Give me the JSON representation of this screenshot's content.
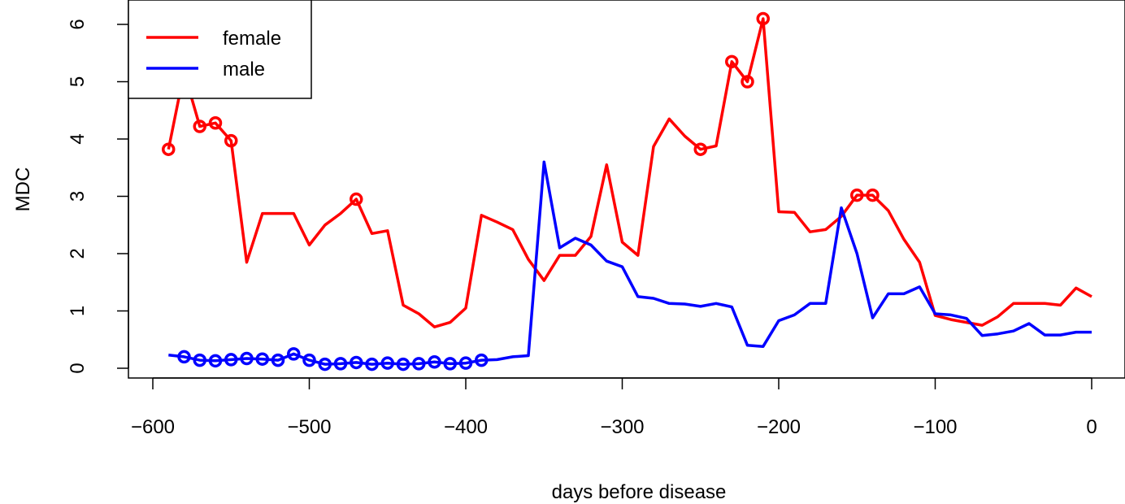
{
  "chart_data": {
    "type": "line",
    "title": "",
    "xlabel": "days before disease",
    "ylabel": "MDC",
    "xlim": [
      -600,
      0
    ],
    "ylim": [
      0,
      6
    ],
    "xticks": [
      -600,
      -500,
      -400,
      -300,
      -200,
      -100,
      0
    ],
    "yticks": [
      0,
      1,
      2,
      3,
      4,
      5,
      6
    ],
    "xtick_labels": [
      "−600",
      "−500",
      "−400",
      "−300",
      "−200",
      "−100",
      "0"
    ],
    "ytick_labels": [
      "0",
      "1",
      "2",
      "3",
      "4",
      "5",
      "6"
    ],
    "grid": false,
    "legend_position": "top-left",
    "series": [
      {
        "name": "female",
        "color": "#ff0000",
        "x": [
          -590,
          -580,
          -570,
          -560,
          -550,
          -540,
          -530,
          -520,
          -510,
          -500,
          -490,
          -480,
          -470,
          -460,
          -450,
          -440,
          -430,
          -420,
          -410,
          -400,
          -390,
          -380,
          -370,
          -360,
          -350,
          -340,
          -330,
          -320,
          -310,
          -300,
          -290,
          -280,
          -270,
          -260,
          -250,
          -240,
          -230,
          -220,
          -210,
          -200,
          -190,
          -180,
          -170,
          -160,
          -150,
          -140,
          -130,
          -120,
          -110,
          -100,
          -90,
          -80,
          -70,
          -60,
          -50,
          -40,
          -30,
          -20,
          -10,
          0
        ],
        "y": [
          3.82,
          5.17,
          4.22,
          4.28,
          3.97,
          1.85,
          2.7,
          2.7,
          2.7,
          2.15,
          2.5,
          2.7,
          2.95,
          2.35,
          2.4,
          1.1,
          0.95,
          0.72,
          0.8,
          1.05,
          2.67,
          2.55,
          2.42,
          1.9,
          1.53,
          1.97,
          1.97,
          2.3,
          3.55,
          2.2,
          1.97,
          3.87,
          4.35,
          4.05,
          3.82,
          3.88,
          5.35,
          5.0,
          6.1,
          2.73,
          2.72,
          2.38,
          2.42,
          2.65,
          3.02,
          3.02,
          2.75,
          2.25,
          1.85,
          0.92,
          0.85,
          0.8,
          0.75,
          0.9,
          1.13,
          1.13,
          1.13,
          1.1,
          1.4,
          1.25
        ],
        "circled_x": [
          -590,
          -580,
          -570,
          -560,
          -550,
          -470,
          -250,
          -230,
          -220,
          -210,
          -150,
          -140
        ]
      },
      {
        "name": "male",
        "color": "#0000ff",
        "x": [
          -590,
          -580,
          -570,
          -560,
          -550,
          -540,
          -530,
          -520,
          -510,
          -500,
          -490,
          -480,
          -470,
          -460,
          -450,
          -440,
          -430,
          -420,
          -410,
          -400,
          -390,
          -380,
          -370,
          -360,
          -350,
          -340,
          -330,
          -320,
          -310,
          -300,
          -290,
          -280,
          -270,
          -260,
          -250,
          -240,
          -230,
          -220,
          -210,
          -200,
          -190,
          -180,
          -170,
          -160,
          -150,
          -140,
          -130,
          -120,
          -110,
          -100,
          -90,
          -80,
          -70,
          -60,
          -50,
          -40,
          -30,
          -20,
          -10,
          0
        ],
        "y": [
          0.23,
          0.2,
          0.14,
          0.13,
          0.15,
          0.17,
          0.16,
          0.14,
          0.25,
          0.14,
          0.07,
          0.08,
          0.1,
          0.07,
          0.09,
          0.07,
          0.08,
          0.11,
          0.08,
          0.09,
          0.14,
          0.15,
          0.2,
          0.22,
          3.6,
          2.1,
          2.27,
          2.15,
          1.87,
          1.77,
          1.25,
          1.22,
          1.13,
          1.12,
          1.08,
          1.13,
          1.07,
          0.4,
          0.38,
          0.83,
          0.93,
          1.13,
          1.13,
          2.8,
          2.0,
          0.88,
          1.3,
          1.3,
          1.42,
          0.95,
          0.93,
          0.87,
          0.57,
          0.6,
          0.65,
          0.78,
          0.58,
          0.58,
          0.63,
          0.63
        ],
        "circled_x": [
          -580,
          -570,
          -560,
          -550,
          -540,
          -530,
          -520,
          -510,
          -500,
          -490,
          -480,
          -470,
          -460,
          -450,
          -440,
          -430,
          -420,
          -410,
          -400,
          -390
        ]
      }
    ]
  }
}
